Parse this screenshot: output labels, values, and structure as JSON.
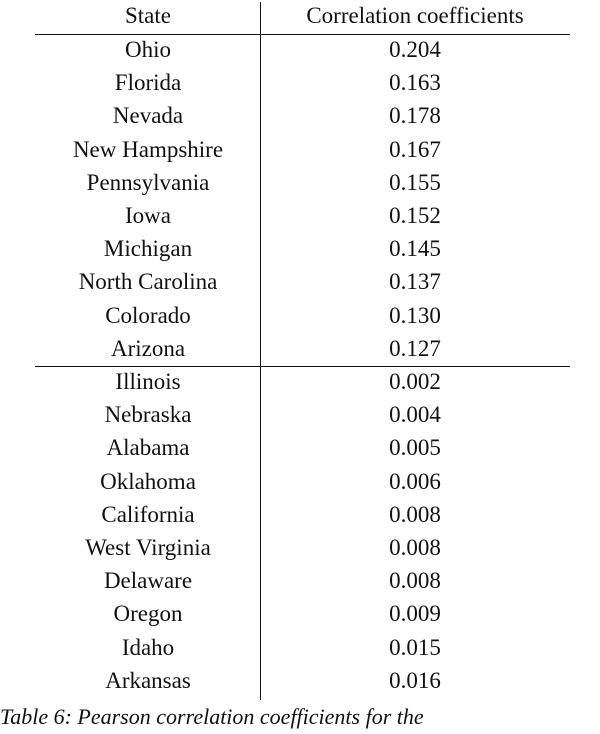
{
  "table": {
    "header": [
      "State",
      "Correlation coefficients"
    ],
    "groups": [
      [
        [
          "Ohio",
          "0.204"
        ],
        [
          "Florida",
          "0.163"
        ],
        [
          "Nevada",
          "0.178"
        ],
        [
          "New Hampshire",
          "0.167"
        ],
        [
          "Pennsylvania",
          "0.155"
        ],
        [
          "Iowa",
          "0.152"
        ],
        [
          "Michigan",
          "0.145"
        ],
        [
          "North Carolina",
          "0.137"
        ],
        [
          "Colorado",
          "0.130"
        ],
        [
          "Arizona",
          "0.127"
        ]
      ],
      [
        [
          "Illinois",
          "0.002"
        ],
        [
          "Nebraska",
          "0.004"
        ],
        [
          "Alabama",
          "0.005"
        ],
        [
          "Oklahoma",
          "0.006"
        ],
        [
          "California",
          "0.008"
        ],
        [
          "West Virginia",
          "0.008"
        ],
        [
          "Delaware",
          "0.008"
        ],
        [
          "Oregon",
          "0.009"
        ],
        [
          "Idaho",
          "0.015"
        ],
        [
          "Arkansas",
          "0.016"
        ]
      ]
    ]
  },
  "caption": "Table 6: Pearson correlation coefficients for the"
}
